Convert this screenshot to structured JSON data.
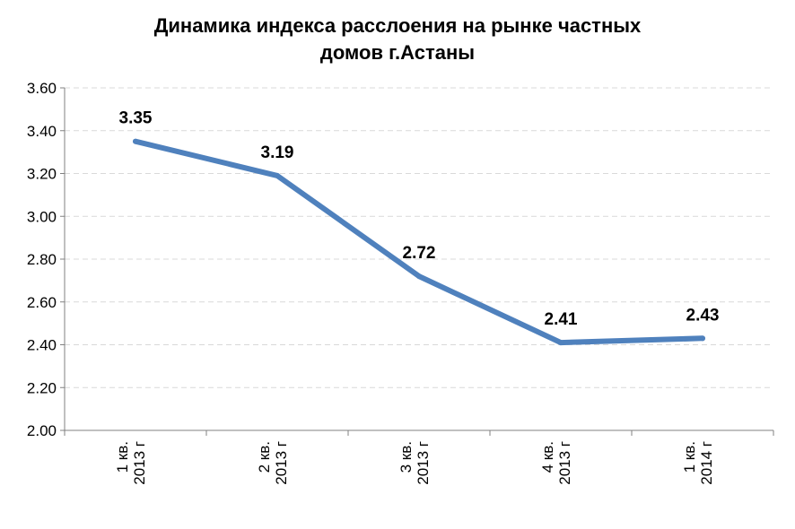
{
  "chart_data": {
    "type": "line",
    "title_lines": [
      "Динамика индекса расслоения на рынке частных",
      "домов г.Астаны"
    ],
    "categories": [
      [
        "1 кв.",
        "2013 г"
      ],
      [
        "2 кв.",
        "2013 г"
      ],
      [
        "3 кв.",
        "2013 г"
      ],
      [
        "4 кв.",
        "2013 г"
      ],
      [
        "1 кв.",
        "2014 г"
      ]
    ],
    "values": [
      3.35,
      3.19,
      2.72,
      2.41,
      2.43
    ],
    "data_labels": [
      "3.35",
      "3.19",
      "2.72",
      "2.41",
      "2.43"
    ],
    "ylim": [
      2.0,
      3.6
    ],
    "yticks": [
      "2.00",
      "2.20",
      "2.40",
      "2.60",
      "2.80",
      "3.00",
      "3.20",
      "3.40",
      "3.60"
    ],
    "grid": true,
    "legend": "none",
    "xlabel": "",
    "ylabel": "",
    "colors": {
      "line": "#4F81BD",
      "grid": "#d9d9d9",
      "axis": "#808080"
    }
  }
}
